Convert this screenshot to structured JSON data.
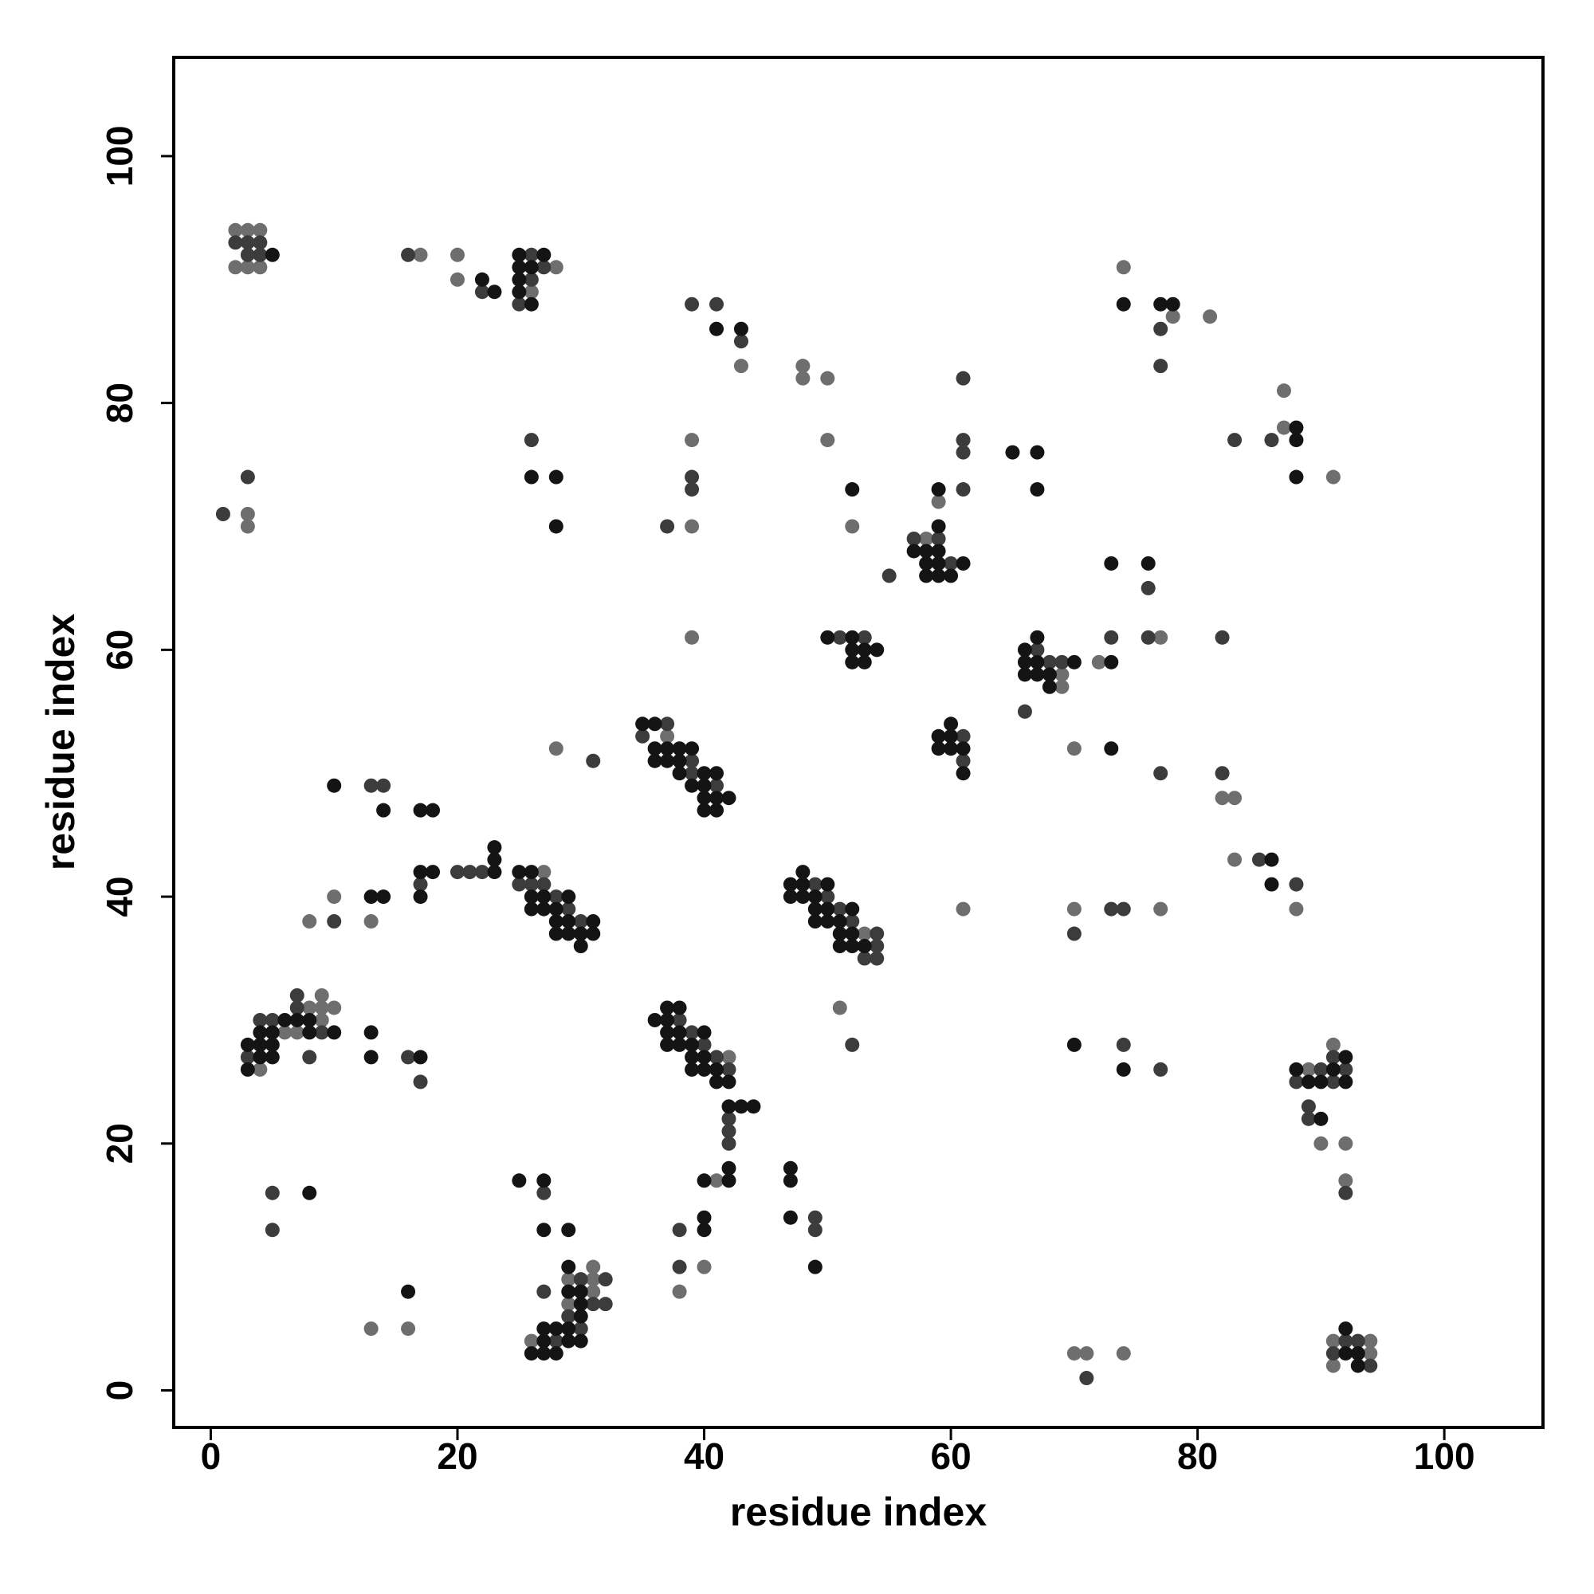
{
  "chart_data": {
    "type": "scatter",
    "x_label": "residue index",
    "y_label": "residue index",
    "xlim": [
      -3,
      108
    ],
    "ylim": [
      -3,
      108
    ],
    "xticks": [
      0,
      20,
      40,
      60,
      80,
      100
    ],
    "yticks": [
      0,
      20,
      40,
      60,
      80,
      100
    ],
    "series": [
      {
        "color": "#6e6e6e",
        "x": [
          2,
          3,
          4,
          2,
          3,
          4,
          17,
          20,
          20,
          28,
          26,
          43,
          48,
          48,
          50,
          74,
          78,
          81,
          87,
          87,
          91,
          3,
          3,
          39,
          39,
          50,
          52,
          59,
          58,
          77,
          72,
          39,
          69,
          69,
          70,
          82,
          83,
          28,
          37,
          83,
          88,
          27,
          10,
          8,
          13,
          53,
          61,
          70,
          77,
          9,
          8,
          9,
          10,
          9,
          6,
          7,
          4,
          42,
          41,
          51,
          91,
          89,
          90,
          92,
          92,
          40,
          38,
          31,
          29,
          31,
          31,
          29,
          26,
          13,
          16,
          70,
          71,
          74,
          91,
          94,
          94,
          91
        ],
        "y": [
          94,
          94,
          94,
          91,
          91,
          91,
          92,
          92,
          90,
          91,
          89,
          83,
          83,
          82,
          82,
          91,
          87,
          87,
          81,
          78,
          74,
          71,
          70,
          77,
          70,
          77,
          70,
          72,
          69,
          61,
          59,
          61,
          58,
          57,
          52,
          48,
          48,
          52,
          53,
          43,
          39,
          42,
          40,
          38,
          38,
          37,
          39,
          39,
          39,
          32,
          31,
          31,
          31,
          30,
          29,
          29,
          26,
          27,
          17,
          31,
          28,
          26,
          20,
          20,
          17,
          10,
          8,
          10,
          9,
          9,
          8,
          7,
          4,
          5,
          5,
          3,
          3,
          3,
          4,
          4,
          3,
          2
        ]
      },
      {
        "color": "#3c3c3c",
        "x": [
          2,
          3,
          4,
          3,
          4,
          16,
          22,
          26,
          27,
          26,
          25,
          39,
          41,
          43,
          77,
          77,
          61,
          83,
          86,
          26,
          3,
          1,
          39,
          39,
          37,
          61,
          61,
          61,
          57,
          59,
          60,
          55,
          76,
          76,
          82,
          73,
          51,
          53,
          67,
          68,
          69,
          66,
          61,
          61,
          77,
          82,
          31,
          37,
          35,
          39,
          39,
          41,
          13,
          14,
          85,
          88,
          20,
          21,
          22,
          17,
          25,
          26,
          27,
          28,
          29,
          30,
          10,
          49,
          50,
          51,
          52,
          54,
          54,
          53,
          54,
          70,
          73,
          74,
          7,
          7,
          4,
          5,
          9,
          3,
          8,
          16,
          17,
          38,
          39,
          40,
          41,
          42,
          42,
          42,
          42,
          52,
          74,
          77,
          91,
          90,
          92,
          88,
          91,
          89,
          89,
          92,
          49,
          49,
          38,
          38,
          5,
          5,
          27,
          30,
          32,
          27,
          31,
          32,
          29,
          30,
          28,
          71,
          92,
          93,
          91,
          94
        ],
        "y": [
          93,
          93,
          93,
          92,
          92,
          92,
          89,
          92,
          91,
          90,
          88,
          88,
          88,
          85,
          86,
          83,
          82,
          77,
          77,
          77,
          74,
          71,
          74,
          73,
          70,
          77,
          76,
          73,
          69,
          69,
          67,
          66,
          65,
          61,
          61,
          61,
          61,
          61,
          60,
          59,
          59,
          55,
          53,
          51,
          50,
          50,
          51,
          54,
          53,
          51,
          50,
          49,
          49,
          49,
          43,
          41,
          42,
          42,
          42,
          41,
          41,
          41,
          41,
          40,
          39,
          38,
          38,
          41,
          40,
          39,
          38,
          37,
          36,
          35,
          35,
          37,
          39,
          39,
          32,
          31,
          30,
          30,
          29,
          27,
          27,
          27,
          25,
          30,
          29,
          28,
          27,
          26,
          22,
          21,
          20,
          28,
          28,
          26,
          27,
          26,
          26,
          25,
          25,
          23,
          22,
          16,
          14,
          13,
          13,
          10,
          16,
          13,
          16,
          9,
          9,
          8,
          7,
          7,
          6,
          5,
          4,
          1,
          4,
          4,
          3,
          2
        ]
      },
      {
        "color": "#141414",
        "x": [
          5,
          22,
          23,
          25,
          27,
          25,
          26,
          25,
          25,
          26,
          41,
          43,
          74,
          77,
          78,
          88,
          88,
          88,
          26,
          28,
          28,
          52,
          65,
          67,
          67,
          59,
          59,
          57,
          58,
          59,
          58,
          59,
          61,
          58,
          59,
          60,
          73,
          76,
          73,
          50,
          52,
          52,
          53,
          54,
          52,
          53,
          67,
          66,
          66,
          67,
          70,
          66,
          67,
          68,
          68,
          60,
          59,
          60,
          59,
          60,
          61,
          61,
          73,
          35,
          36,
          36,
          37,
          38,
          39,
          36,
          37,
          38,
          38,
          40,
          41,
          39,
          40,
          40,
          41,
          42,
          40,
          41,
          10,
          14,
          17,
          18,
          86,
          86,
          23,
          23,
          23,
          17,
          18,
          17,
          25,
          26,
          26,
          27,
          29,
          26,
          27,
          28,
          28,
          29,
          31,
          28,
          29,
          30,
          31,
          30,
          13,
          14,
          48,
          47,
          48,
          50,
          47,
          48,
          49,
          49,
          50,
          52,
          49,
          50,
          51,
          51,
          52,
          51,
          52,
          53,
          6,
          7,
          8,
          4,
          5,
          8,
          10,
          3,
          4,
          5,
          4,
          5,
          3,
          13,
          13,
          17,
          37,
          38,
          36,
          37,
          37,
          38,
          40,
          37,
          38,
          39,
          39,
          40,
          39,
          40,
          41,
          41,
          42,
          42,
          43,
          44,
          42,
          42,
          40,
          70,
          74,
          92,
          88,
          91,
          89,
          90,
          92,
          90,
          47,
          47,
          47,
          49,
          40,
          40,
          8,
          25,
          27,
          27,
          29,
          29,
          29,
          30,
          30,
          30,
          27,
          28,
          29,
          27,
          29,
          30,
          26,
          27,
          28,
          16,
          92,
          92,
          93,
          93
        ],
        "y": [
          92,
          90,
          89,
          92,
          92,
          91,
          91,
          90,
          89,
          88,
          86,
          86,
          88,
          88,
          88,
          78,
          77,
          74,
          74,
          74,
          70,
          73,
          76,
          76,
          73,
          73,
          70,
          68,
          68,
          68,
          67,
          67,
          67,
          66,
          66,
          66,
          67,
          67,
          59,
          61,
          61,
          60,
          60,
          60,
          59,
          59,
          61,
          60,
          59,
          59,
          59,
          58,
          58,
          58,
          57,
          54,
          53,
          53,
          52,
          52,
          52,
          50,
          52,
          54,
          54,
          52,
          52,
          52,
          52,
          51,
          51,
          51,
          50,
          50,
          50,
          49,
          49,
          48,
          48,
          48,
          47,
          47,
          49,
          47,
          47,
          47,
          43,
          41,
          44,
          43,
          42,
          42,
          42,
          40,
          42,
          42,
          40,
          40,
          40,
          39,
          39,
          39,
          38,
          38,
          38,
          37,
          37,
          37,
          37,
          36,
          40,
          40,
          42,
          41,
          41,
          41,
          40,
          40,
          40,
          39,
          39,
          39,
          38,
          38,
          38,
          37,
          37,
          36,
          36,
          36,
          30,
          30,
          30,
          29,
          29,
          29,
          29,
          28,
          28,
          28,
          27,
          27,
          26,
          29,
          27,
          27,
          31,
          31,
          30,
          30,
          29,
          29,
          29,
          28,
          28,
          28,
          27,
          27,
          26,
          26,
          26,
          25,
          25,
          23,
          23,
          23,
          18,
          17,
          17,
          28,
          26,
          27,
          26,
          26,
          25,
          25,
          25,
          22,
          18,
          17,
          14,
          10,
          14,
          13,
          16,
          17,
          17,
          13,
          13,
          10,
          8,
          8,
          7,
          6,
          5,
          5,
          5,
          4,
          4,
          4,
          3,
          3,
          3,
          8,
          5,
          3,
          3,
          2
        ]
      }
    ]
  }
}
